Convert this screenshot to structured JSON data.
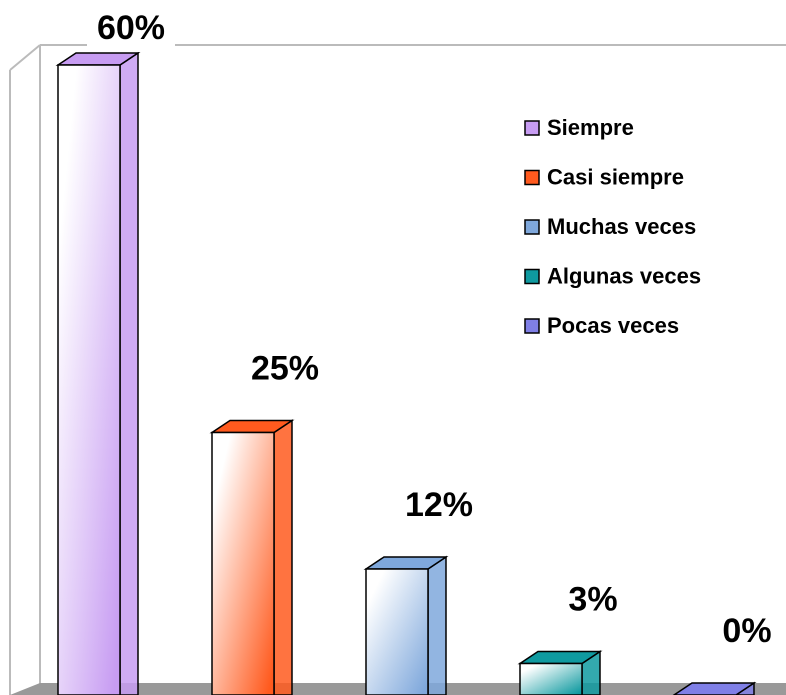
{
  "chart_data": {
    "type": "bar",
    "categories": [
      "Siempre",
      "Casi siempre",
      "Muchas veces",
      "Algunas veces",
      "Pocas veces"
    ],
    "values": [
      60,
      25,
      12,
      3,
      0
    ],
    "value_labels": [
      "60%",
      "25%",
      "12%",
      "3%",
      "0%"
    ],
    "colors": [
      "#c79cf2",
      "#ff5a1e",
      "#7fa8dc",
      "#0f9aa0",
      "#7f7fe6"
    ],
    "legend": "top-right"
  }
}
